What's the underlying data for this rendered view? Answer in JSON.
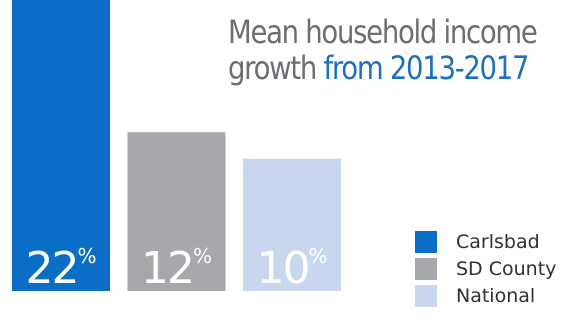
{
  "title": {
    "line1": "Mean household income",
    "line2_prefix": "growth ",
    "line2_accent": "from 2013-2017"
  },
  "colors": {
    "carlsbad": "#0a6ec6",
    "sd_county": "#a7a8ab",
    "national": "#c8d6ee",
    "title_dark": "#6b6e72",
    "title_accent": "#1f6fc1"
  },
  "chart_data": {
    "type": "bar",
    "categories": [
      "Carlsbad",
      "SD County",
      "National"
    ],
    "values": [
      22,
      12,
      10
    ],
    "value_labels": [
      "22%",
      "12%",
      "10%"
    ],
    "title": "Mean household income growth from 2013-2017",
    "xlabel": "",
    "ylabel": "",
    "ylim": [
      0,
      22
    ],
    "grid": false,
    "legend_position": "bottom-right"
  },
  "legend": {
    "items": [
      {
        "label": "Carlsbad",
        "color": "#0a6ec6"
      },
      {
        "label": "SD County",
        "color": "#a7a8ab"
      },
      {
        "label": "National",
        "color": "#c8d6ee"
      }
    ]
  }
}
